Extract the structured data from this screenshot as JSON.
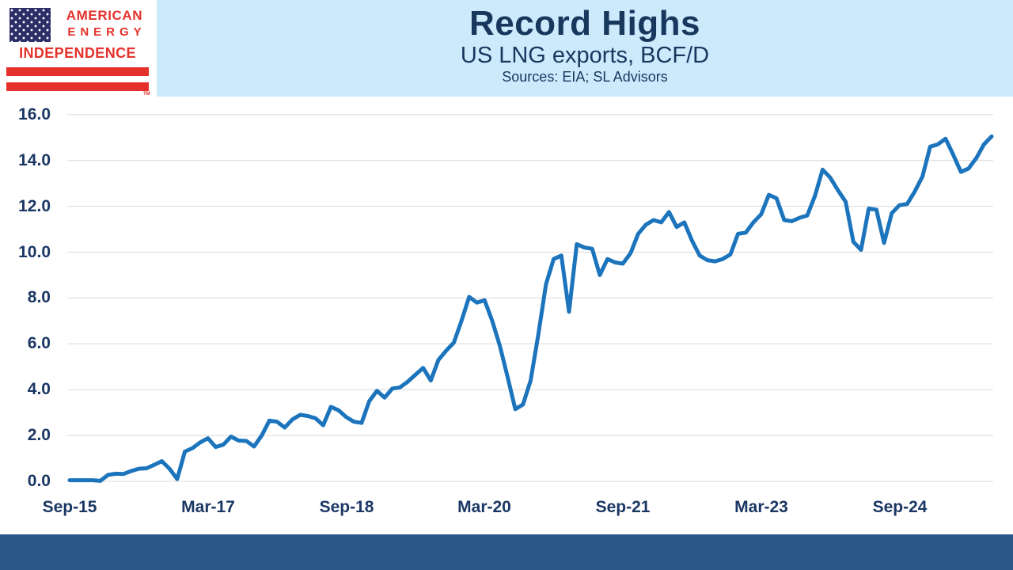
{
  "page": {
    "background": "#ffffff",
    "footer_color": "#2b5787"
  },
  "logo": {
    "line1": "AMERICAN",
    "line2": "ENERGY",
    "line3": "INDEPENDENCE",
    "trademark": "TM",
    "red": "#e5312b",
    "flag_navy": "#2b2e67"
  },
  "header": {
    "title": "Record Highs",
    "subtitle": "US LNG exports, BCF/D",
    "sources": "Sources: EIA; SL Advisors",
    "band_color": "#cdeafd",
    "text_color": "#17375d"
  },
  "chart_data": {
    "type": "line",
    "title": "Record Highs",
    "subtitle": "US LNG exports, BCF/D",
    "series_name": "US LNG exports (BCF/D)",
    "x": [
      "Sep-15",
      "Oct-15",
      "Nov-15",
      "Dec-15",
      "Jan-16",
      "Feb-16",
      "Mar-16",
      "Apr-16",
      "May-16",
      "Jun-16",
      "Jul-16",
      "Aug-16",
      "Sep-16",
      "Oct-16",
      "Nov-16",
      "Dec-16",
      "Jan-17",
      "Feb-17",
      "Mar-17",
      "Apr-17",
      "May-17",
      "Jun-17",
      "Jul-17",
      "Aug-17",
      "Sep-17",
      "Oct-17",
      "Nov-17",
      "Dec-17",
      "Jan-18",
      "Feb-18",
      "Mar-18",
      "Apr-18",
      "May-18",
      "Jun-18",
      "Jul-18",
      "Aug-18",
      "Sep-18",
      "Oct-18",
      "Nov-18",
      "Dec-18",
      "Jan-19",
      "Feb-19",
      "Mar-19",
      "Apr-19",
      "May-19",
      "Jun-19",
      "Jul-19",
      "Aug-19",
      "Sep-19",
      "Oct-19",
      "Nov-19",
      "Dec-19",
      "Jan-20",
      "Feb-20",
      "Mar-20",
      "Apr-20",
      "May-20",
      "Jun-20",
      "Jul-20",
      "Aug-20",
      "Sep-20",
      "Oct-20",
      "Nov-20",
      "Dec-20",
      "Jan-21",
      "Feb-21",
      "Mar-21",
      "Apr-21",
      "May-21",
      "Jun-21",
      "Jul-21",
      "Aug-21",
      "Sep-21",
      "Oct-21",
      "Nov-21",
      "Dec-21",
      "Jan-22",
      "Feb-22",
      "Mar-22",
      "Apr-22",
      "May-22",
      "Jun-22",
      "Jul-22",
      "Aug-22",
      "Sep-22",
      "Oct-22",
      "Nov-22",
      "Dec-22",
      "Jan-23",
      "Feb-23",
      "Mar-23",
      "Apr-23",
      "May-23",
      "Jun-23",
      "Jul-23",
      "Aug-23",
      "Sep-23",
      "Oct-23",
      "Nov-23",
      "Dec-23",
      "Jan-24",
      "Feb-24",
      "Mar-24",
      "Apr-24",
      "May-24",
      "Jun-24",
      "Jul-24",
      "Aug-24",
      "Sep-24",
      "Oct-24",
      "Nov-24",
      "Dec-24",
      "Jan-25",
      "Feb-25",
      "Mar-25",
      "Apr-25",
      "May-25",
      "Jun-25",
      "Jul-25",
      "Aug-25",
      "Sep-25"
    ],
    "values": [
      0.05,
      0.05,
      0.05,
      0.05,
      0.02,
      0.28,
      0.33,
      0.32,
      0.45,
      0.55,
      0.57,
      0.72,
      0.88,
      0.55,
      0.1,
      1.3,
      1.45,
      1.7,
      1.88,
      1.5,
      1.6,
      1.95,
      1.78,
      1.76,
      1.52,
      2.0,
      2.65,
      2.6,
      2.35,
      2.7,
      2.9,
      2.85,
      2.75,
      2.45,
      3.25,
      3.1,
      2.8,
      2.6,
      2.55,
      3.5,
      3.95,
      3.65,
      4.05,
      4.1,
      4.35,
      4.65,
      4.95,
      4.4,
      5.3,
      5.7,
      6.05,
      7.0,
      8.05,
      7.8,
      7.9,
      7.0,
      5.9,
      4.55,
      3.15,
      3.35,
      4.4,
      6.4,
      8.6,
      9.7,
      9.85,
      7.4,
      10.35,
      10.2,
      10.15,
      9.0,
      9.7,
      9.55,
      9.5,
      9.95,
      10.8,
      11.2,
      11.4,
      11.3,
      11.75,
      11.1,
      11.3,
      10.5,
      9.85,
      9.65,
      9.6,
      9.7,
      9.9,
      10.8,
      10.85,
      11.3,
      11.65,
      12.5,
      12.35,
      11.4,
      11.35,
      11.5,
      11.6,
      12.45,
      13.6,
      13.25,
      12.7,
      12.2,
      10.45,
      10.1,
      11.9,
      11.85,
      10.4,
      11.7,
      12.05,
      12.1,
      12.65,
      13.3,
      14.6,
      14.7,
      14.95,
      14.25,
      13.5,
      13.65,
      14.1,
      14.7,
      15.05
    ],
    "ylim": [
      0,
      16
    ],
    "y_ticks": [
      0,
      2,
      4,
      6,
      8,
      10,
      12,
      14,
      16
    ],
    "y_tick_format": "one-decimal",
    "x_tick_every": 18,
    "x_tick_labels": [
      "Sep-15",
      "Mar-17",
      "Sep-18",
      "Mar-20",
      "Sep-21",
      "Mar-23",
      "Sep-24"
    ],
    "grid": "horizontal",
    "legend": "none",
    "line_color": "#1b74bc",
    "gridline_color": "#d9d9d9",
    "axis_label_color": "#1b3764"
  }
}
